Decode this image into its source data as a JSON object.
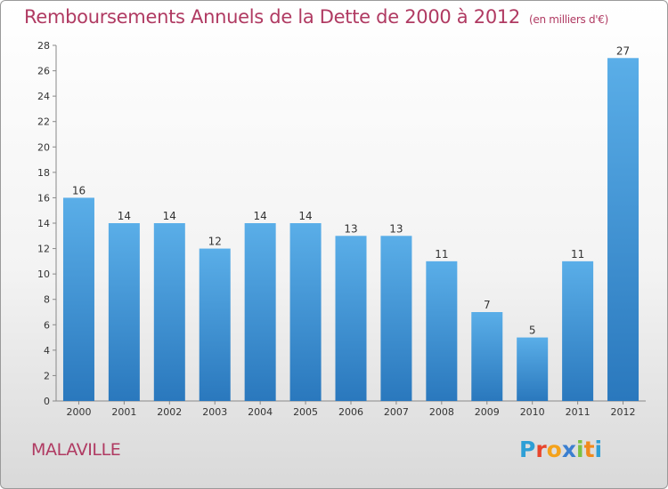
{
  "header": {
    "title": "Remboursements Annuels de la Dette de 2000 à 2012",
    "unit": "(en milliers d'€)"
  },
  "footer": {
    "town": "MALAVILLE",
    "brand_letters": [
      "P",
      "r",
      "o",
      "x",
      "i",
      "t",
      "i"
    ],
    "brand_colors": [
      "#2e9fd6",
      "#e8452c",
      "#f4a21b",
      "#3b7fd0",
      "#7cc243",
      "#f08a1c",
      "#2e9fd6"
    ]
  },
  "colors": {
    "title": "#b03a62",
    "bar_top": "#5aaee8",
    "bar_bottom": "#2a78bd",
    "axis_text": "#333333",
    "grid": "#dddddd"
  },
  "chart_data": {
    "type": "bar",
    "categories": [
      "2000",
      "2001",
      "2002",
      "2003",
      "2004",
      "2005",
      "2006",
      "2007",
      "2008",
      "2009",
      "2010",
      "2011",
      "2012"
    ],
    "values": [
      16,
      14,
      14,
      12,
      14,
      14,
      13,
      13,
      11,
      7,
      5,
      11,
      27
    ],
    "data_labels": [
      "16",
      "14",
      "14",
      "12",
      "14",
      "14",
      "13",
      "13",
      "11",
      "7",
      "5",
      "11",
      "27"
    ],
    "y_ticks": [
      0,
      2,
      4,
      6,
      8,
      10,
      12,
      14,
      16,
      18,
      20,
      22,
      24,
      26,
      28
    ],
    "ylim": [
      0,
      28
    ],
    "grid": false,
    "legend": "none"
  }
}
